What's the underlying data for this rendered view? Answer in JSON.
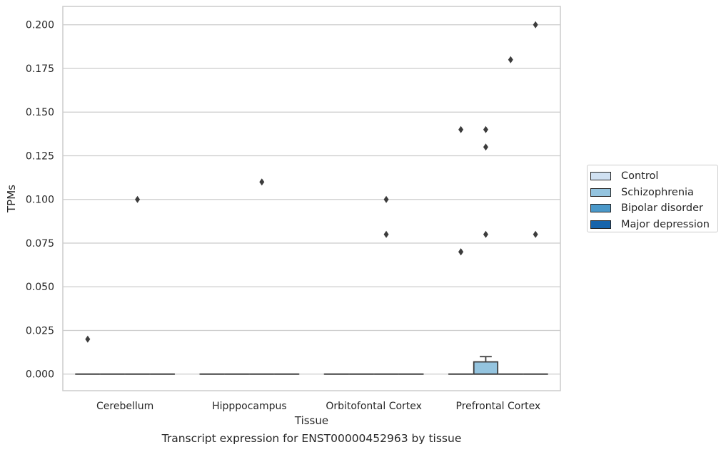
{
  "caption": "Transcript expression for ENST00000452963 by tissue",
  "chart_data": {
    "type": "box",
    "xlabel": "Tissue",
    "ylabel": "TPMs",
    "ylim": [
      -0.0095,
      0.2105
    ],
    "yticks": [
      0.0,
      0.025,
      0.05,
      0.075,
      0.1,
      0.125,
      0.15,
      0.175,
      0.2
    ],
    "ytick_labels": [
      "0.000",
      "0.025",
      "0.050",
      "0.075",
      "0.100",
      "0.125",
      "0.150",
      "0.175",
      "0.200"
    ],
    "grid": true,
    "legend_placement": "right",
    "categories": [
      "Cerebellum",
      "Hipppocampus",
      "Orbitofontal Cortex",
      "Prefrontal Cortex"
    ],
    "series": [
      {
        "name": "Control",
        "color": "#d0e1f2",
        "boxes": [
          {
            "q1": 0,
            "median": 0,
            "q3": 0,
            "whisker_low": 0,
            "whisker_high": 0,
            "outliers": [
              0.02
            ]
          },
          {
            "q1": 0,
            "median": 0,
            "q3": 0,
            "whisker_low": 0,
            "whisker_high": 0,
            "outliers": []
          },
          {
            "q1": 0,
            "median": 0,
            "q3": 0,
            "whisker_low": 0,
            "whisker_high": 0,
            "outliers": []
          },
          {
            "q1": 0,
            "median": 0,
            "q3": 0,
            "whisker_low": 0,
            "whisker_high": 0,
            "outliers": [
              0.07,
              0.07,
              0.14
            ]
          }
        ]
      },
      {
        "name": "Schizophrenia",
        "color": "#94c4df",
        "boxes": [
          {
            "q1": 0,
            "median": 0,
            "q3": 0,
            "whisker_low": 0,
            "whisker_high": 0,
            "outliers": []
          },
          {
            "q1": 0,
            "median": 0,
            "q3": 0,
            "whisker_low": 0,
            "whisker_high": 0,
            "outliers": []
          },
          {
            "q1": 0,
            "median": 0,
            "q3": 0,
            "whisker_low": 0,
            "whisker_high": 0,
            "outliers": []
          },
          {
            "q1": 0,
            "median": 0,
            "q3": 0.007,
            "whisker_low": 0,
            "whisker_high": 0.01,
            "outliers": [
              0.08,
              0.13,
              0.14
            ]
          }
        ]
      },
      {
        "name": "Bipolar disorder",
        "color": "#4a98c9",
        "boxes": [
          {
            "q1": 0,
            "median": 0,
            "q3": 0,
            "whisker_low": 0,
            "whisker_high": 0,
            "outliers": [
              0.1
            ]
          },
          {
            "q1": 0,
            "median": 0,
            "q3": 0,
            "whisker_low": 0,
            "whisker_high": 0,
            "outliers": [
              0.11
            ]
          },
          {
            "q1": 0,
            "median": 0,
            "q3": 0,
            "whisker_low": 0,
            "whisker_high": 0,
            "outliers": [
              0.08,
              0.1
            ]
          },
          {
            "q1": 0,
            "median": 0,
            "q3": 0,
            "whisker_low": 0,
            "whisker_high": 0,
            "outliers": [
              0.18
            ]
          }
        ]
      },
      {
        "name": "Major depression",
        "color": "#1764ab",
        "boxes": [
          {
            "q1": 0,
            "median": 0,
            "q3": 0,
            "whisker_low": 0,
            "whisker_high": 0,
            "outliers": []
          },
          {
            "q1": 0,
            "median": 0,
            "q3": 0,
            "whisker_low": 0,
            "whisker_high": 0,
            "outliers": []
          },
          {
            "q1": 0,
            "median": 0,
            "q3": 0,
            "whisker_low": 0,
            "whisker_high": 0,
            "outliers": []
          },
          {
            "q1": 0,
            "median": 0,
            "q3": 0,
            "whisker_low": 0,
            "whisker_high": 0,
            "outliers": [
              0.08,
              0.2
            ]
          }
        ]
      }
    ]
  }
}
